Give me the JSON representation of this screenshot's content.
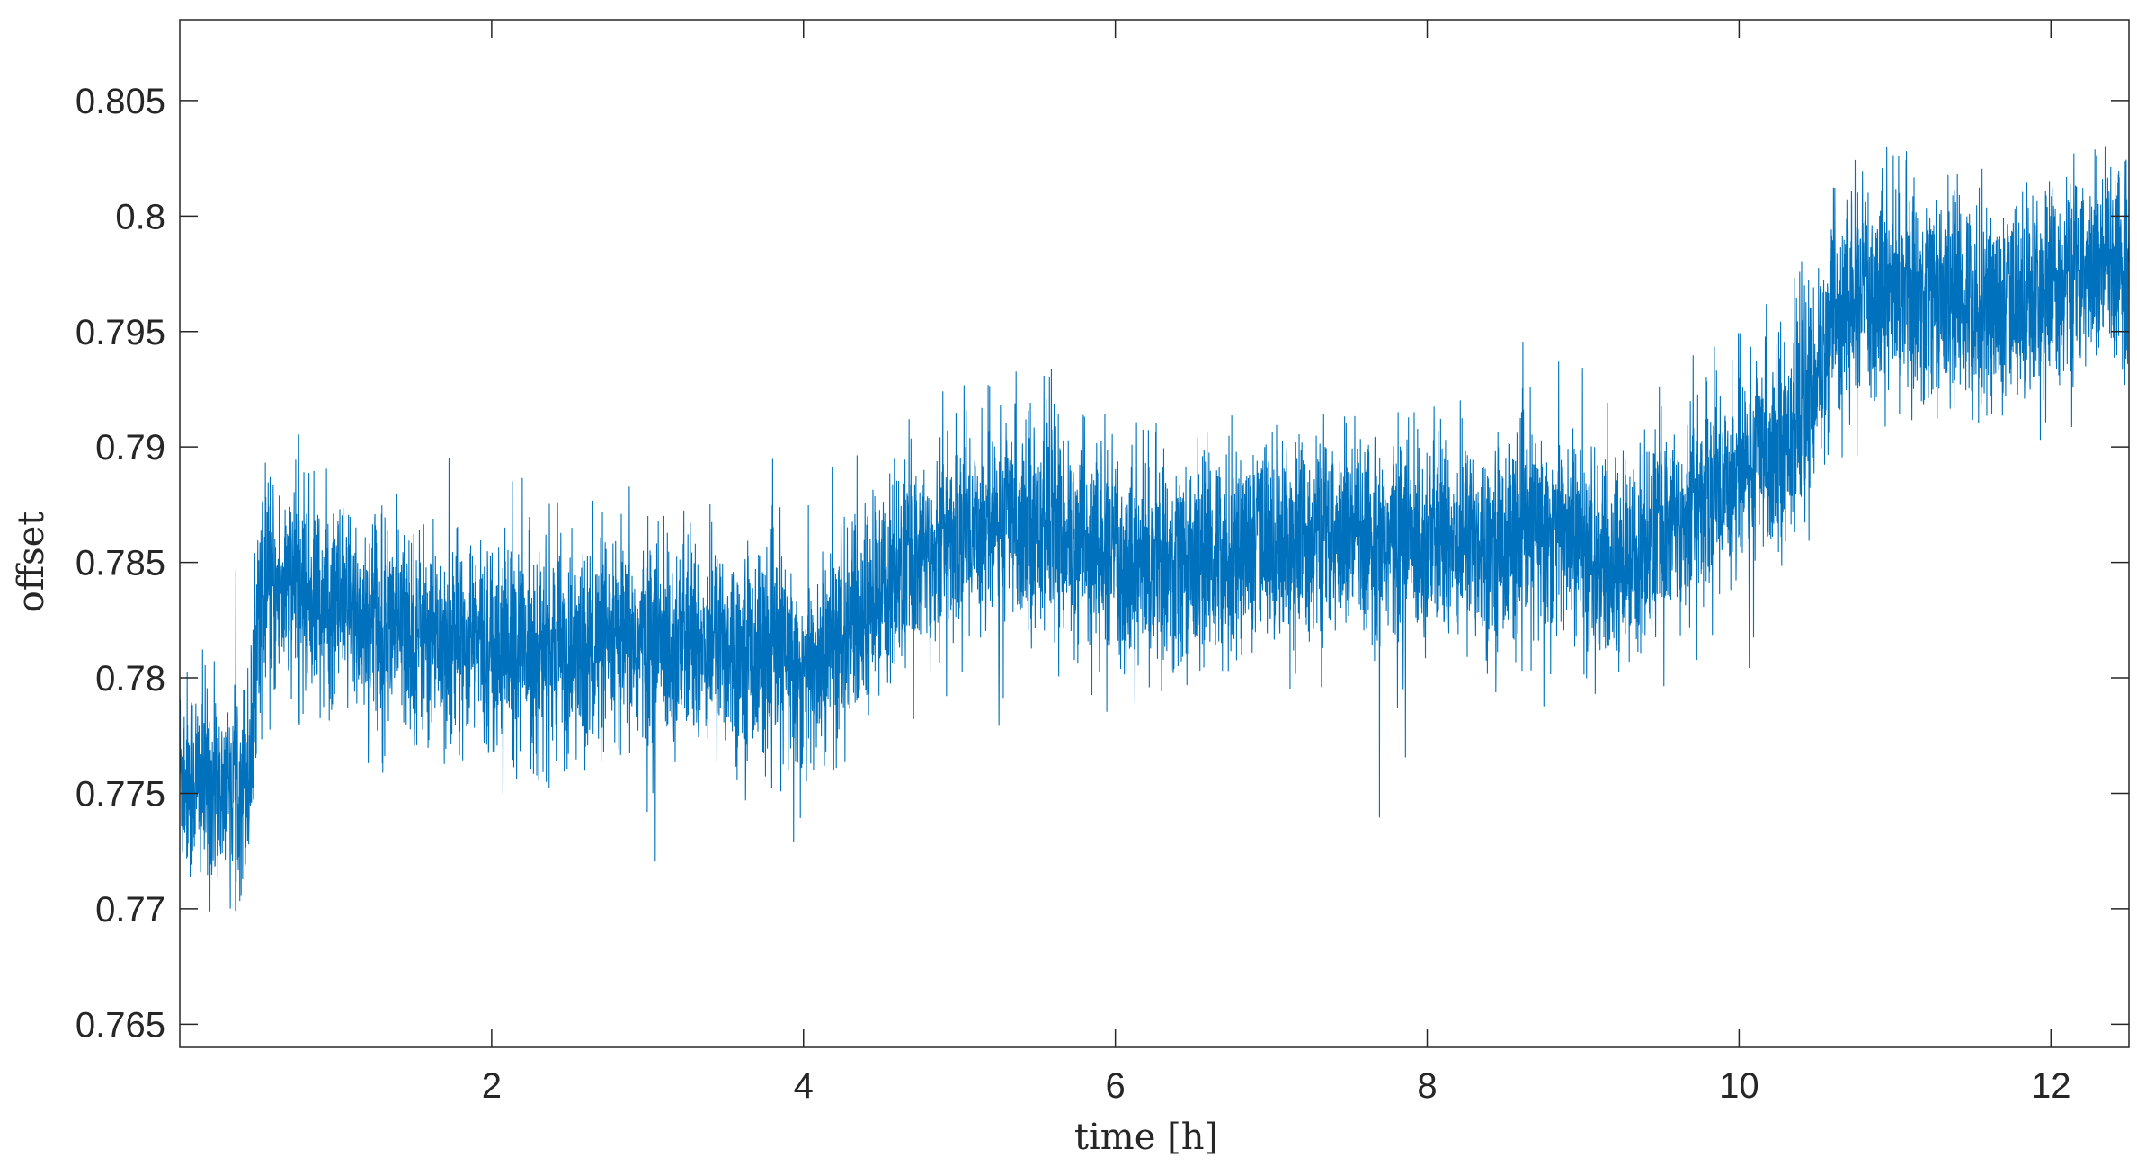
{
  "chart_data": {
    "type": "line",
    "title": "",
    "xlabel": "time [h]",
    "ylabel": "offset",
    "xlim": [
      0,
      12.5
    ],
    "ylim": [
      0.764,
      0.8085
    ],
    "xticks": [
      2,
      4,
      6,
      8,
      10,
      12
    ],
    "xtick_labels": [
      "2",
      "4",
      "6",
      "8",
      "10",
      "12"
    ],
    "yticks": [
      0.765,
      0.77,
      0.775,
      0.78,
      0.785,
      0.79,
      0.795,
      0.8,
      0.805
    ],
    "ytick_labels": [
      "0.765",
      "0.77",
      "0.775",
      "0.78",
      "0.785",
      "0.79",
      "0.795",
      "0.8",
      "0.805"
    ],
    "grid": false,
    "series": [
      {
        "color": "#0072BD",
        "description_points": {
          "x": [
            0.0,
            0.25,
            0.45,
            0.5,
            0.7,
            1.0,
            1.5,
            2.0,
            2.5,
            3.0,
            3.5,
            3.85,
            4.0,
            4.3,
            4.6,
            5.0,
            5.4,
            5.7,
            6.0,
            6.5,
            7.0,
            7.5,
            8.0,
            8.5,
            8.9,
            9.1,
            9.3,
            9.6,
            10.0,
            10.4,
            10.6,
            10.9,
            11.3,
            11.7,
            12.0,
            12.5
          ],
          "y": [
            0.776,
            0.775,
            0.776,
            0.783,
            0.784,
            0.783,
            0.782,
            0.7815,
            0.781,
            0.7815,
            0.7815,
            0.781,
            0.78,
            0.782,
            0.7845,
            0.7865,
            0.787,
            0.786,
            0.785,
            0.785,
            0.786,
            0.786,
            0.786,
            0.786,
            0.7865,
            0.7845,
            0.785,
            0.787,
            0.789,
            0.791,
            0.7955,
            0.797,
            0.7965,
            0.796,
            0.797,
            0.798
          ]
        },
        "noise_std": 0.0022
      }
    ]
  }
}
